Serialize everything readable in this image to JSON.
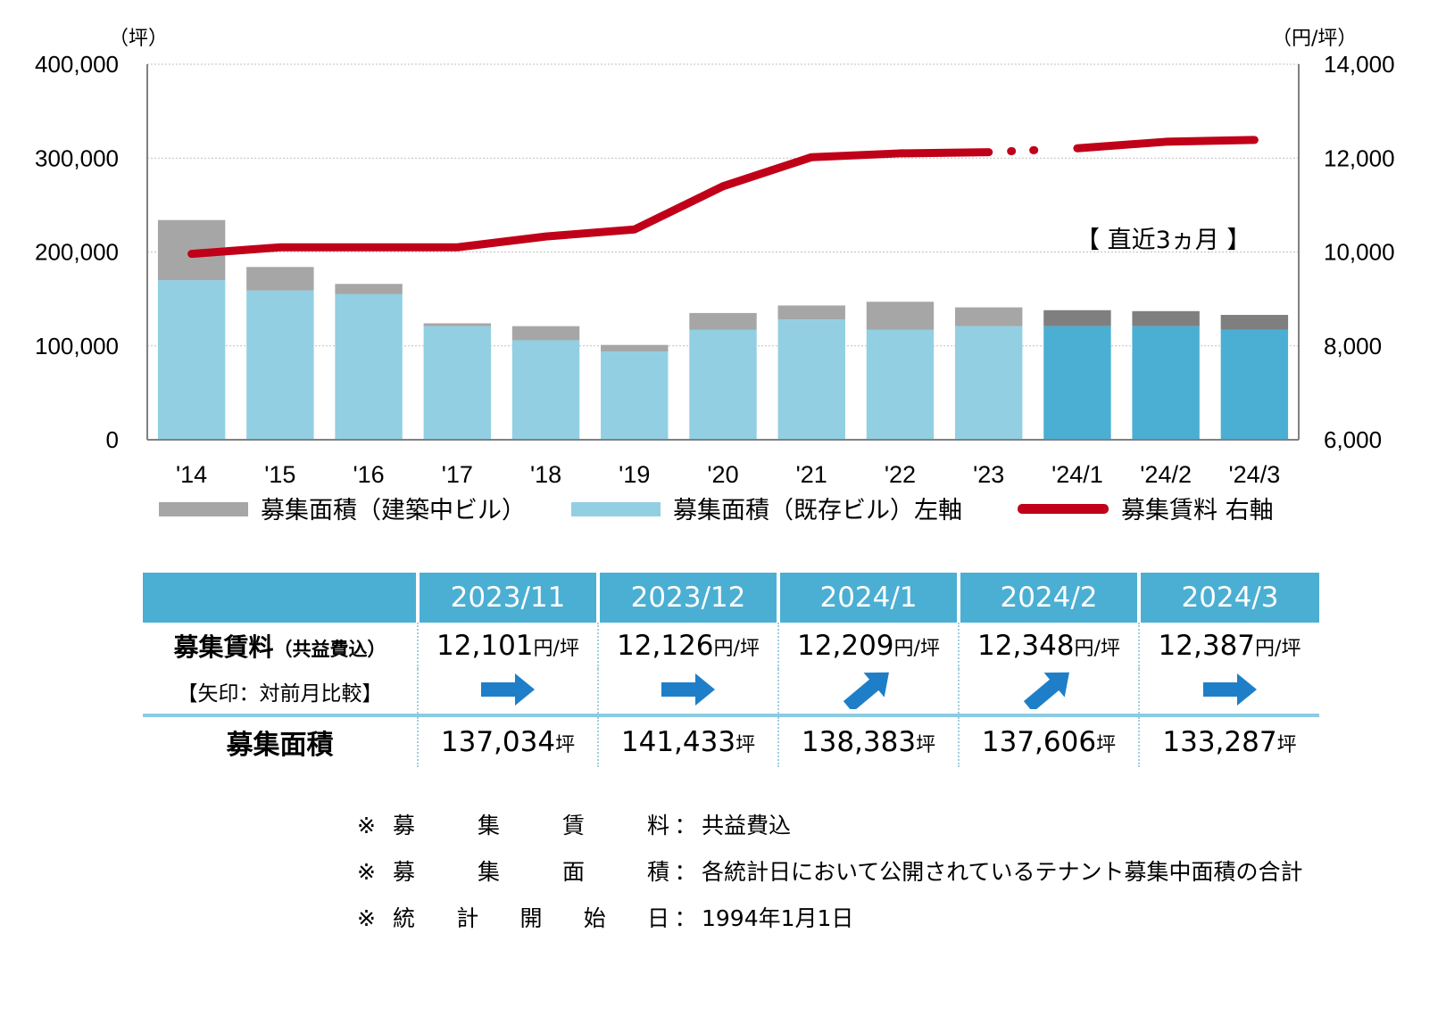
{
  "chart_data": {
    "type": "bar",
    "categories": [
      "'14",
      "'15",
      "'16",
      "'17",
      "'18",
      "'19",
      "'20",
      "'21",
      "'22",
      "'23",
      "'24/1",
      "'24/2",
      "'24/3"
    ],
    "series": [
      {
        "name": "募集面積（既存ビル）左軸",
        "type": "bar",
        "stack": "area",
        "axis": "left",
        "values": [
          170000,
          159000,
          155000,
          121000,
          106000,
          94000,
          117000,
          128000,
          117000,
          121000,
          121000,
          121000,
          117000
        ]
      },
      {
        "name": "募集面積（建築中ビル）",
        "type": "bar",
        "stack": "area",
        "axis": "left",
        "values": [
          64000,
          25000,
          11000,
          3000,
          15000,
          7000,
          18000,
          15000,
          30000,
          20000,
          17000,
          16000,
          16000
        ]
      },
      {
        "name": "募集賃料 右軸",
        "type": "line",
        "axis": "right",
        "values": [
          9960,
          10100,
          10100,
          10100,
          10330,
          10480,
          11400,
          12020,
          12101,
          12126,
          12209,
          12348,
          12387
        ]
      }
    ],
    "left_axis": {
      "unit": "（坪）",
      "ylim": [
        0,
        400000
      ],
      "ticks": [
        "0",
        "100,000",
        "200,000",
        "300,000",
        "400,000"
      ]
    },
    "right_axis": {
      "unit": "（円/坪）",
      "ylim": [
        6000,
        14000
      ],
      "ticks": [
        "6,000",
        "8,000",
        "10,000",
        "12,000",
        "14,000"
      ]
    },
    "annotation": "【 直近3ヵ月 】",
    "legend": [
      {
        "label": "募集面積（建築中ビル）",
        "color": "#a6a6a6"
      },
      {
        "label": "募集面積（既存ビル）左軸",
        "color": "#92cfe3"
      },
      {
        "label": "募集賃料 右軸",
        "color": "#c00018"
      }
    ],
    "legend_position": "bottom",
    "grid": true,
    "colors": {
      "existing": "#92cfe3",
      "existing_recent": "#4bafd3",
      "construction": "#a6a6a6",
      "construction_recent": "#7f7f7f",
      "rent_line": "#c00018"
    }
  },
  "table": {
    "headers": [
      "2023/11",
      "2023/12",
      "2024/1",
      "2024/2",
      "2024/3"
    ],
    "rent_label": "募集賃料",
    "rent_label_sub": "（共益費込）",
    "arrow_label": "【矢印：対前月比較】",
    "area_label": "募集面積",
    "rent_values": [
      "12,101",
      "12,126",
      "12,209",
      "12,348",
      "12,387"
    ],
    "rent_unit": "円/坪",
    "arrows": [
      "right",
      "right",
      "up-right",
      "up-right",
      "right"
    ],
    "area_values": [
      "137,034",
      "141,433",
      "138,383",
      "137,606",
      "133,287"
    ],
    "area_unit": "坪",
    "arrow_color": "#1e7fc8"
  },
  "notes": [
    {
      "mark": "※",
      "key": [
        "募",
        "集",
        "賃",
        "料"
      ],
      "sep": "：",
      "text": "共益費込"
    },
    {
      "mark": "※",
      "key": [
        "募",
        "集",
        "面",
        "積"
      ],
      "sep": "：",
      "text": "各統計日において公開されているテナント募集中面積の合計"
    },
    {
      "mark": "※",
      "key": [
        "統",
        "計",
        "開",
        "始",
        "日"
      ],
      "sep": "：",
      "text": "1994年1月1日"
    }
  ]
}
